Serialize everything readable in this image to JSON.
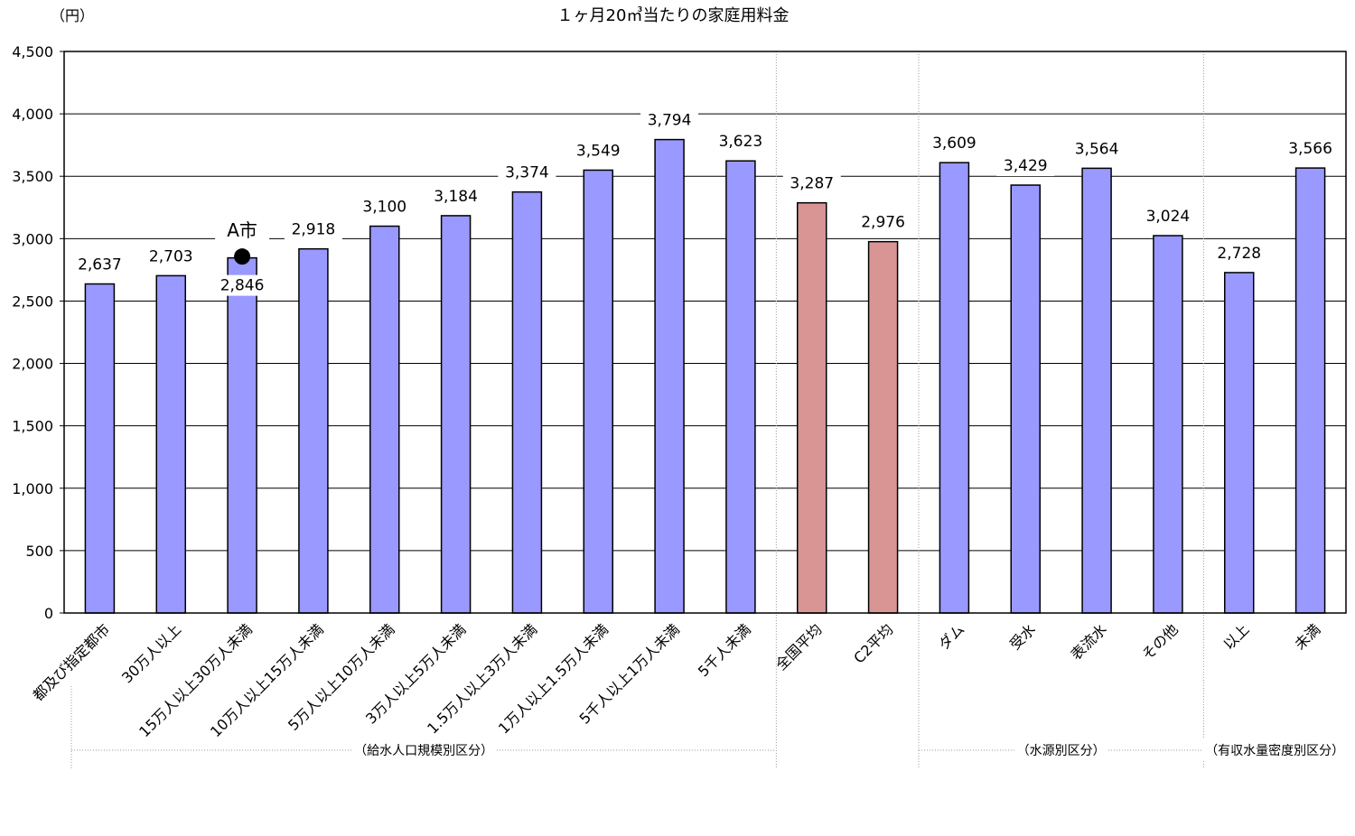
{
  "chart_data": {
    "type": "bar",
    "title": "１ヶ月20㎥当たりの家庭用料金",
    "unit_label": "（円）",
    "ylim": [
      0,
      4500
    ],
    "yticks": [
      0,
      500,
      1000,
      1500,
      2000,
      2500,
      3000,
      3500,
      4000,
      4500
    ],
    "ytick_labels": [
      "0",
      "500",
      "1,000",
      "1,500",
      "2,000",
      "2,500",
      "3,000",
      "3,500",
      "4,000",
      "4,500"
    ],
    "grid": true,
    "categories": [
      "都及び指定都市",
      "30万人以上",
      "15万人以上30万人未満",
      "10万人以上15万人未満",
      "5万人以上10万人未満",
      "3万人以上5万人未満",
      "1.5万人以上3万人未満",
      "1万人以上1.5万人未満",
      "5千人以上1万人未満",
      "5千人未満",
      "全国平均",
      "C2平均",
      "ダム",
      "受水",
      "表流水",
      "その他",
      "以上",
      "未満"
    ],
    "values": [
      2637,
      2703,
      2846,
      2918,
      3100,
      3184,
      3374,
      3549,
      3794,
      3623,
      3287,
      2976,
      3609,
      3429,
      3564,
      3024,
      2728,
      3566
    ],
    "value_labels": [
      "2,637",
      "2,703",
      "2,846",
      "2,918",
      "3,100",
      "3,184",
      "3,374",
      "3,549",
      "3,794",
      "3,623",
      "3,287",
      "2,976",
      "3,609",
      "3,429",
      "3,564",
      "3,024",
      "2,728",
      "3,566"
    ],
    "bar_colors": [
      "#9999ff",
      "#9999ff",
      "#9999ff",
      "#9999ff",
      "#9999ff",
      "#9999ff",
      "#9999ff",
      "#9999ff",
      "#9999ff",
      "#9999ff",
      "#d99594",
      "#d99594",
      "#9999ff",
      "#9999ff",
      "#9999ff",
      "#9999ff",
      "#9999ff",
      "#9999ff"
    ],
    "marker": {
      "label": "A市",
      "category_index": 2,
      "value": 2900
    },
    "groups": [
      {
        "label": "（給水人口規模別区分）",
        "from": 0,
        "to": 9
      },
      {
        "label": "（水源別区分）",
        "from": 12,
        "to": 15
      },
      {
        "label": "（有収水量密度別区分）",
        "from": 16,
        "to": 17
      }
    ]
  }
}
